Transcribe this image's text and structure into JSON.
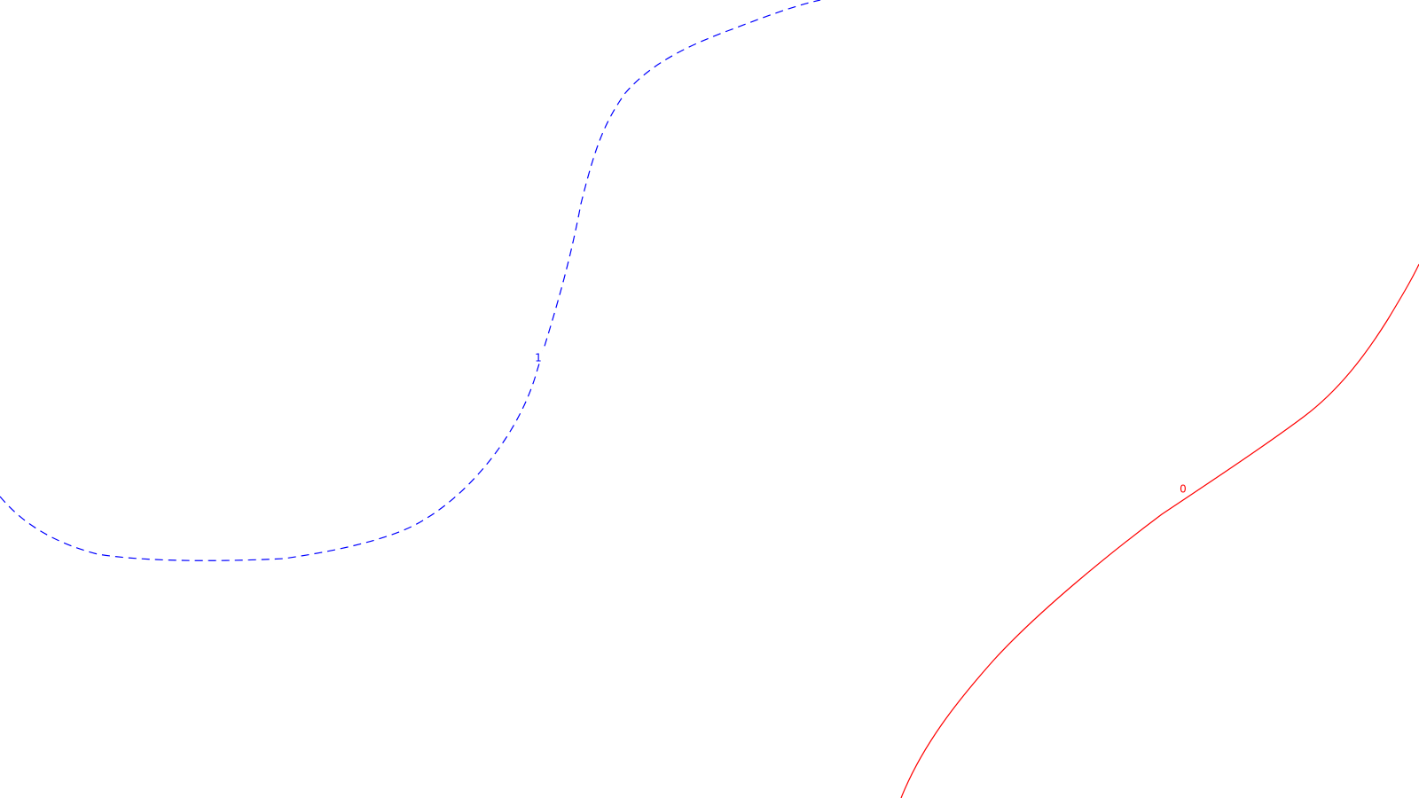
{
  "contours": [
    {
      "label": "1",
      "color": "#0000ff",
      "line_style": "dashed"
    },
    {
      "label": "0",
      "color": "#ff0000",
      "line_style": "solid"
    }
  ]
}
